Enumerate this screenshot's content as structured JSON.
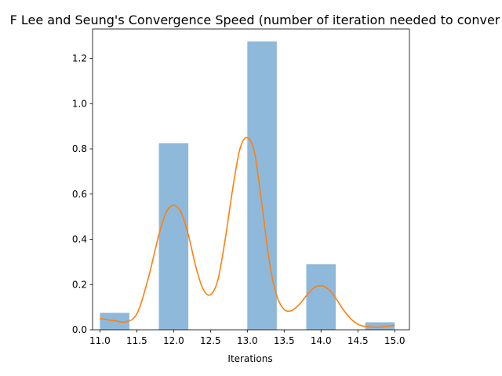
{
  "chart_data": {
    "type": "bar",
    "title": "NMF Lee and Seung's Convergence Speed (number of iteration needed to converge)",
    "title_visible": "F Lee and Seung's Convergence Speed (number of iteration needed to conver",
    "xlabel": "Iterations",
    "ylabel": "",
    "xlim": [
      10.9,
      15.2
    ],
    "ylim": [
      0,
      1.33
    ],
    "grid": false,
    "xticks": [
      11.0,
      11.5,
      12.0,
      12.5,
      13.0,
      13.5,
      14.0,
      14.5,
      15.0
    ],
    "xtick_labels": [
      "11.0",
      "11.5",
      "12.0",
      "12.5",
      "13.0",
      "13.5",
      "14.0",
      "14.5",
      "15.0"
    ],
    "yticks": [
      0.0,
      0.2,
      0.4,
      0.6,
      0.8,
      1.0,
      1.2
    ],
    "ytick_labels": [
      "0.0",
      "0.2",
      "0.4",
      "0.6",
      "0.8",
      "1.0",
      "1.2"
    ],
    "bars": [
      {
        "x_start": 11.0,
        "x_end": 11.4,
        "value": 0.075
      },
      {
        "x_start": 11.8,
        "x_end": 12.2,
        "value": 0.825
      },
      {
        "x_start": 13.0,
        "x_end": 13.4,
        "value": 1.275
      },
      {
        "x_start": 13.8,
        "x_end": 14.2,
        "value": 0.29
      },
      {
        "x_start": 14.6,
        "x_end": 15.0,
        "value": 0.033
      }
    ],
    "density_curve": {
      "x": [
        11.0,
        11.2,
        11.35,
        11.5,
        11.65,
        11.8,
        11.9,
        12.0,
        12.1,
        12.2,
        12.3,
        12.4,
        12.5,
        12.6,
        12.7,
        12.8,
        12.9,
        13.0,
        13.1,
        13.2,
        13.3,
        13.4,
        13.5,
        13.6,
        13.7,
        13.8,
        13.9,
        14.0,
        14.1,
        14.2,
        14.3,
        14.4,
        14.5,
        14.6,
        14.8,
        15.0
      ],
      "y": [
        0.05,
        0.04,
        0.035,
        0.07,
        0.22,
        0.42,
        0.52,
        0.55,
        0.52,
        0.42,
        0.28,
        0.18,
        0.155,
        0.22,
        0.4,
        0.62,
        0.8,
        0.85,
        0.78,
        0.55,
        0.3,
        0.15,
        0.09,
        0.085,
        0.11,
        0.15,
        0.185,
        0.195,
        0.18,
        0.14,
        0.09,
        0.05,
        0.025,
        0.015,
        0.012,
        0.02
      ]
    },
    "colors": {
      "bar": "#8fb9da",
      "line": "#ff7f0e",
      "axis": "#000000"
    }
  }
}
